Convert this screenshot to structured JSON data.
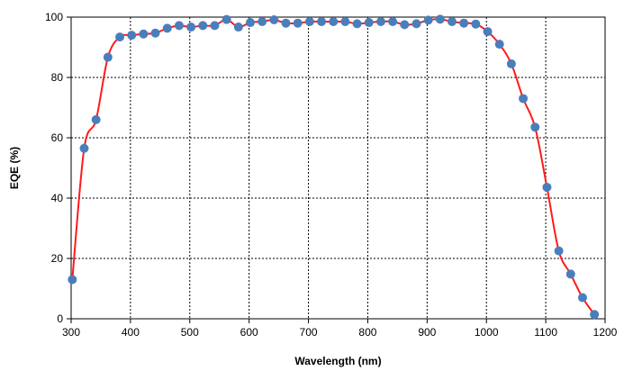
{
  "chart_data": {
    "type": "line",
    "title": "",
    "xlabel": "Wavelength (nm)",
    "ylabel": "EQE (%)",
    "xlim": [
      300,
      1200
    ],
    "ylim": [
      0,
      100
    ],
    "x_ticks": [
      300,
      400,
      500,
      600,
      700,
      800,
      900,
      1000,
      1100,
      1200
    ],
    "y_ticks": [
      0,
      20,
      40,
      60,
      80,
      100
    ],
    "grid": true,
    "grid_style": "dashed",
    "legend": "none",
    "colors": {
      "line": "#ff1a1a",
      "marker": "#4a7ebb",
      "grid": "#000000"
    },
    "series": [
      {
        "x": [
          302,
          322,
          342,
          362,
          382,
          402,
          422,
          442,
          462,
          482,
          502,
          522,
          542,
          562,
          582,
          602,
          622,
          642,
          662,
          682,
          702,
          722,
          742,
          762,
          782,
          802,
          822,
          842,
          862,
          882,
          902,
          922,
          942,
          962,
          982,
          1002,
          1022,
          1042,
          1062,
          1082,
          1102,
          1122,
          1142,
          1162,
          1182
        ],
        "y": [
          13,
          56.5,
          66,
          86.7,
          93.4,
          94,
          94.4,
          94.7,
          96.3,
          97.2,
          96.7,
          97.2,
          97.2,
          99.2,
          96.7,
          98.2,
          98.5,
          99.1,
          98,
          98,
          98.5,
          98.5,
          98.5,
          98.5,
          97.8,
          98.2,
          98.5,
          98.5,
          97.5,
          97.8,
          99,
          99.3,
          98.5,
          98,
          97.7,
          95.2,
          91,
          84.5,
          73,
          63.5,
          43.6,
          22.5,
          14.8,
          7,
          1.4
        ]
      }
    ]
  }
}
